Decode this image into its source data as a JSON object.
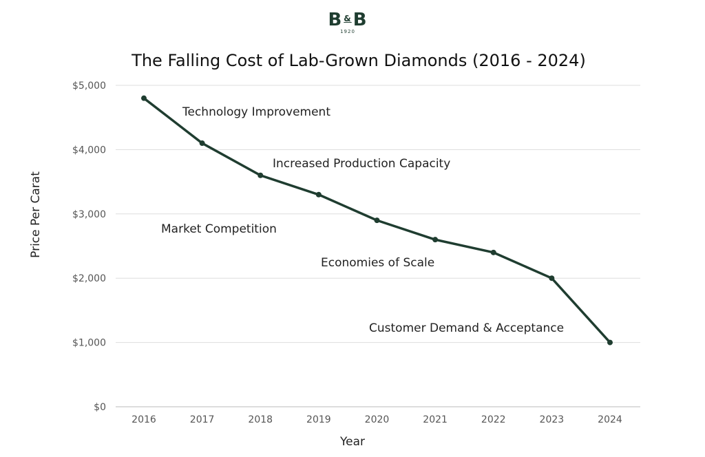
{
  "logo": {
    "left": "B",
    "amp": "&",
    "right": "B",
    "year": "1920"
  },
  "chart_data": {
    "type": "line",
    "title": "The Falling Cost of Lab-Grown Diamonds (2016 - 2024)",
    "xlabel": "Year",
    "ylabel": "Price Per Carat",
    "categories": [
      "2016",
      "2017",
      "2018",
      "2019",
      "2020",
      "2021",
      "2022",
      "2023",
      "2024"
    ],
    "values": [
      4800,
      4100,
      3600,
      3300,
      2900,
      2600,
      2400,
      2000,
      1000
    ],
    "ylim": [
      0,
      5000
    ],
    "yticks": [
      0,
      1000,
      2000,
      3000,
      4000,
      5000
    ],
    "ytick_labels": [
      "$0",
      "$1,000",
      "$2,000",
      "$3,000",
      "$4,000",
      "$5,000"
    ],
    "grid": "horizontal",
    "line_color": "#1f3d30",
    "annotations": [
      "Technology Improvement",
      "Increased Production Capacity",
      "Market Competition",
      "Economies of Scale",
      "Customer Demand & Acceptance"
    ]
  }
}
